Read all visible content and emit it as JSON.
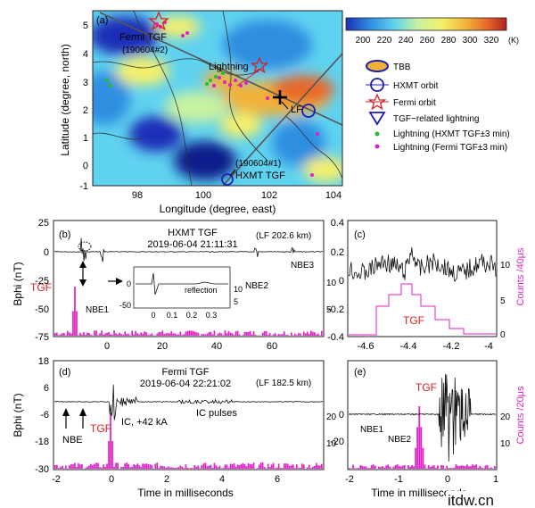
{
  "map": {
    "panel_label": "(a)",
    "xlabel": "Longitude (degree, east)",
    "ylabel": "Latitude (degree, north)",
    "xticks": [
      "98",
      "100",
      "102",
      "104"
    ],
    "yticks": [
      "5",
      "4",
      "3",
      "2",
      "1",
      "0",
      "-1"
    ],
    "fermi_tgf_label": "Fermi TGF",
    "fermi_tgf_id": "(190604#2)",
    "lightning_label": "Lightning",
    "lf_label": "LF",
    "hxmt_id": "(190604#1)",
    "hxmt_tgf_label": "HXMT TGF",
    "colorbar_ticks": [
      "200",
      "220",
      "240",
      "260",
      "280",
      "300",
      "320"
    ],
    "colorbar_unit": "(K)",
    "colorbar_colors": [
      "#1a2fb8",
      "#2f8ee0",
      "#5fd2f0",
      "#c9f2a0",
      "#f6f06a",
      "#f2b23a",
      "#e8672a",
      "#b02020"
    ],
    "legend": [
      {
        "label": "TBB",
        "symbol": "ellipse"
      },
      {
        "label": "HXMT orbit",
        "symbol": "circle"
      },
      {
        "label": "Fermi orbit",
        "symbol": "star"
      },
      {
        "label": "TGF−related lightning",
        "symbol": "triangle"
      },
      {
        "label": "Lightning (HXMT TGF±3 min)",
        "symbol": "green-dot"
      },
      {
        "label": "Lightning (Fermi TGF±3 min)",
        "symbol": "magenta-dot"
      }
    ]
  },
  "panel_b": {
    "panel_label": "(b)",
    "title": "HXMT TGF",
    "datetime": "2019-06-04 21:11:31",
    "lf_note": "(LF 202.6 km)",
    "ylabel": "Bphi (nT)",
    "yticks": [
      "25",
      "0",
      "-25",
      "-50",
      "-75"
    ],
    "xticks": [
      "0",
      "20",
      "40",
      "60"
    ],
    "right_ticks": [
      "10",
      "5"
    ],
    "tgf_label": "TGF",
    "nbe1": "NBE1",
    "nbe2": "NBE2",
    "nbe3": "NBE3",
    "inset_reflection": "reflection",
    "inset_xticks": [
      "0",
      "0.1",
      "0.2",
      "0.3"
    ],
    "inset_yticks": [
      "0",
      "-50"
    ],
    "inset_right_ticks": [
      "10",
      "5"
    ]
  },
  "panel_c": {
    "panel_label": "(c)",
    "yticks": [
      "0.4",
      "0.2",
      "0",
      "-0.2",
      "-0.4"
    ],
    "xticks": [
      "-4.6",
      "-4.4",
      "-4.2",
      "-4"
    ],
    "right_ticks": [
      "10",
      "5",
      "0"
    ],
    "right_label": "Counts /40μs",
    "tgf_label": "TGF"
  },
  "panel_d": {
    "panel_label": "(d)",
    "title": "Fermi TGF",
    "datetime": "2019-06-04 22:21:02",
    "lf_note": "(LF 182.5 km)",
    "ylabel": "Bphi (nT)",
    "yticks": [
      "18",
      "6",
      "-6",
      "-18",
      "-30"
    ],
    "xticks": [
      "-2",
      "0",
      "2",
      "4",
      "6"
    ],
    "xlabel": "Time in milliseconds",
    "right_ticks": [
      "20",
      "10"
    ],
    "nbe": "NBE",
    "tgf_label": "TGF",
    "ic_label": "IC, +42 kA",
    "ic_pulses": "IC pulses"
  },
  "panel_e": {
    "panel_label": "(e)",
    "yticks": [
      "0",
      "-20"
    ],
    "xticks": [
      "-2",
      "-1",
      "0",
      "1"
    ],
    "xlabel": "Time in milliseconds",
    "right_ticks": [
      "20",
      "10"
    ],
    "right_label": "Counts /20μs",
    "tgf_label": "TGF",
    "nbe1": "NBE1",
    "nbe2": "NBE2"
  },
  "watermark": "itdw.cn"
}
